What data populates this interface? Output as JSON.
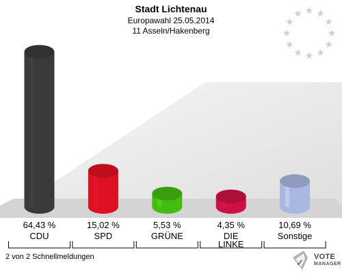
{
  "header": {
    "title": "Stadt Lichtenau",
    "subtitle": "Europawahl 25.05.2014",
    "district": "11 Asseln/Hakenberg"
  },
  "chart_data": {
    "type": "bar",
    "categories": [
      "CDU",
      "SPD",
      "GRÜNE",
      "DIE LINKE",
      "Sonstige"
    ],
    "category_lines": [
      [
        "CDU"
      ],
      [
        "SPD"
      ],
      [
        "GRÜNE"
      ],
      [
        "DIE",
        "LINKE"
      ],
      [
        "Sonstige"
      ]
    ],
    "values": [
      64.43,
      15.02,
      5.53,
      4.35,
      10.69
    ],
    "value_labels": [
      "64,43 %",
      "15,02 %",
      "5,53 %",
      "4,35 %",
      "10,69 %"
    ],
    "colors": [
      "#3a3a3a",
      "#dd1122",
      "#44bb11",
      "#cc1144",
      "#a8b8e0"
    ],
    "title": "",
    "xlabel": "",
    "ylabel": "",
    "ylim": [
      0,
      70
    ],
    "grid": false,
    "legend": "none"
  },
  "footer": {
    "status": "2 von 2 Schnellmeldungen",
    "logo_line1": "VOTE",
    "logo_line2": "MANAGER"
  },
  "decor": {
    "eu_stars_color": "#c8d0e0",
    "floor_color": "#d8d8d8"
  }
}
